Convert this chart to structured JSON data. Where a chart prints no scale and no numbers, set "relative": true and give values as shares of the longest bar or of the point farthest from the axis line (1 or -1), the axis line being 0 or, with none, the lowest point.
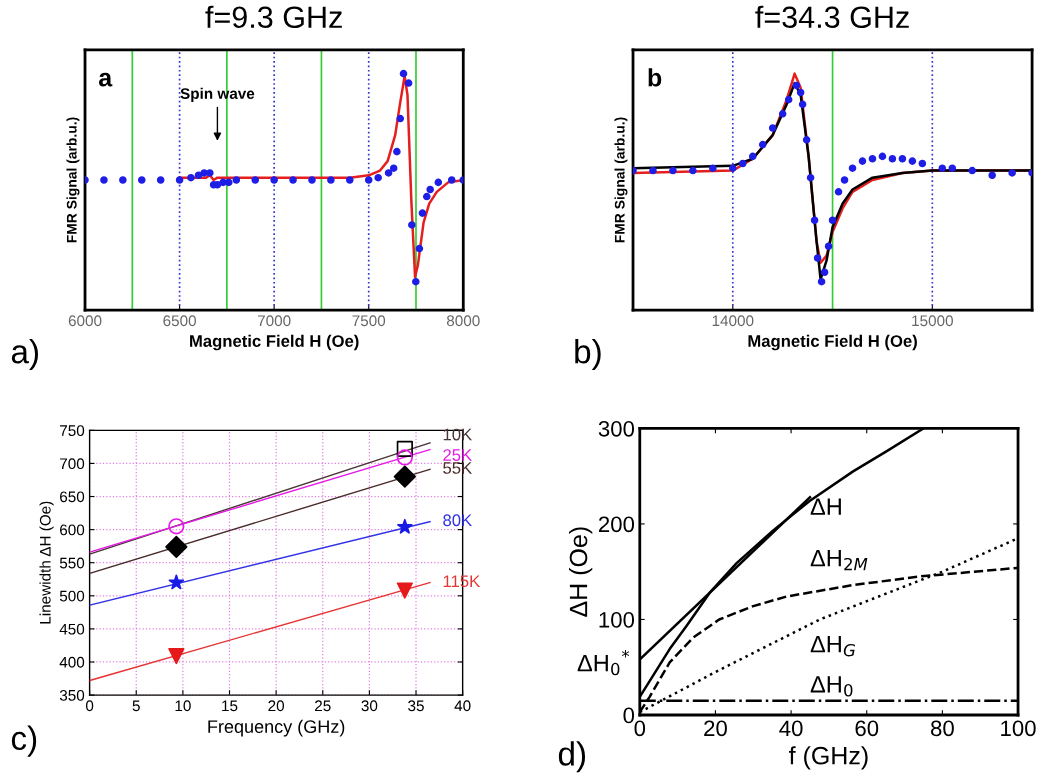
{
  "chart_data": [
    {
      "type": "scatter",
      "title": "f=9.3 GHz",
      "xlabel": "Magnetic Field H (Oe)",
      "ylabel": "FMR Signal (arb.u.)",
      "relative": true,
      "xlim": [
        6000,
        8000
      ],
      "xticks": [
        6000,
        6500,
        7000,
        7500,
        8000
      ],
      "series": [
        {
          "type": "scatter",
          "marker": "circle",
          "color": "#1e1ee6",
          "x": [
            6000,
            6100,
            6200,
            6300,
            6400,
            6500,
            6560,
            6600,
            6630,
            6660,
            6680,
            6700,
            6730,
            6760,
            6800,
            6900,
            7000,
            7100,
            7200,
            7300,
            7400,
            7500,
            7550,
            7605,
            7632,
            7649,
            7667,
            7684,
            7711,
            7728,
            7749,
            7768,
            7784,
            7807,
            7825,
            7868,
            7939,
            8000
          ],
          "values": [
            0.55,
            0.55,
            0.55,
            0.55,
            0.55,
            0.55,
            0.56,
            0.57,
            0.58,
            0.58,
            0.53,
            0.53,
            0.54,
            0.54,
            0.55,
            0.55,
            0.55,
            0.55,
            0.55,
            0.55,
            0.55,
            0.55,
            0.56,
            0.58,
            0.6,
            0.67,
            0.81,
            1.0,
            0.96,
            0.36,
            0.12,
            0.26,
            0.41,
            0.48,
            0.51,
            0.54,
            0.55,
            0.55
          ]
        },
        {
          "type": "line",
          "marker": "none",
          "color": "#e51e1e",
          "x": [
            6500,
            6640,
            6660,
            6680,
            6700,
            7000,
            7400,
            7500,
            7560,
            7600,
            7640,
            7665,
            7690,
            7705,
            7725,
            7745,
            7760,
            7790,
            7820,
            7860,
            7920,
            8000
          ],
          "values": [
            0.56,
            0.56,
            0.57,
            0.55,
            0.56,
            0.56,
            0.56,
            0.57,
            0.59,
            0.63,
            0.74,
            0.87,
            0.99,
            0.91,
            0.47,
            0.14,
            0.19,
            0.37,
            0.45,
            0.5,
            0.54,
            0.55
          ]
        }
      ],
      "ref_lines": [
        {
          "axis": "x",
          "value": 6250,
          "color": "#33cc33",
          "line_style": "solid"
        },
        {
          "axis": "x",
          "value": 6750,
          "color": "#33cc33",
          "line_style": "solid"
        },
        {
          "axis": "x",
          "value": 7250,
          "color": "#33cc33",
          "line_style": "solid"
        },
        {
          "axis": "x",
          "value": 7750,
          "color": "#33cc33",
          "line_style": "solid"
        },
        {
          "axis": "x",
          "value": 6500,
          "color": "#3333cc",
          "line_style": "dotted"
        },
        {
          "axis": "x",
          "value": 7000,
          "color": "#3333cc",
          "line_style": "dotted"
        },
        {
          "axis": "x",
          "value": 7500,
          "color": "#3333cc",
          "line_style": "dotted"
        }
      ],
      "annotations": [
        "a",
        "Spin wave",
        "a)"
      ]
    },
    {
      "type": "scatter",
      "title": "f=34.3 GHz",
      "xlabel": "Magnetic Field H (Oe)",
      "ylabel": "FMR Signal (arb.u.)",
      "relative": true,
      "xlim": [
        13500,
        15500
      ],
      "xticks": [
        14000,
        15000
      ],
      "series": [
        {
          "type": "scatter",
          "marker": "circle",
          "color": "#1e1ee6",
          "x": [
            13500,
            13600,
            13700,
            13800,
            13900,
            14000,
            14050,
            14100,
            14150,
            14200,
            14250,
            14280,
            14319,
            14340,
            14350,
            14370,
            14390,
            14410,
            14425,
            14445,
            14460,
            14480,
            14500,
            14530,
            14560,
            14600,
            14650,
            14700,
            14750,
            14800,
            14850,
            14900,
            14950,
            15050,
            15100,
            15200,
            15300,
            15400,
            15500
          ],
          "values": [
            0.59,
            0.59,
            0.59,
            0.59,
            0.6,
            0.6,
            0.62,
            0.65,
            0.7,
            0.77,
            0.83,
            0.89,
            0.95,
            0.92,
            0.87,
            0.72,
            0.56,
            0.38,
            0.22,
            0.12,
            0.16,
            0.27,
            0.38,
            0.5,
            0.55,
            0.6,
            0.63,
            0.64,
            0.65,
            0.64,
            0.64,
            0.63,
            0.62,
            0.6,
            0.6,
            0.59,
            0.57,
            0.58,
            0.58
          ]
        },
        {
          "type": "line",
          "marker": "none",
          "color": "#e51e1e",
          "x": [
            13500,
            14000,
            14100,
            14200,
            14270,
            14310,
            14340,
            14380,
            14420,
            14440,
            14470,
            14500,
            14550,
            14600,
            14700,
            14850,
            15000,
            15500
          ],
          "values": [
            0.58,
            0.59,
            0.64,
            0.74,
            0.89,
            1.0,
            0.94,
            0.65,
            0.29,
            0.2,
            0.23,
            0.33,
            0.43,
            0.5,
            0.55,
            0.58,
            0.59,
            0.59
          ]
        },
        {
          "type": "line",
          "marker": "none",
          "color": "#000000",
          "x": [
            13500,
            14000,
            14100,
            14200,
            14270,
            14310,
            14340,
            14380,
            14420,
            14440,
            14470,
            14500,
            14550,
            14600,
            14700,
            14850,
            15000,
            15500
          ],
          "values": [
            0.6,
            0.61,
            0.64,
            0.74,
            0.87,
            0.96,
            0.91,
            0.65,
            0.29,
            0.13,
            0.21,
            0.35,
            0.45,
            0.51,
            0.56,
            0.58,
            0.59,
            0.59
          ]
        }
      ],
      "ref_lines": [
        {
          "axis": "x",
          "value": 14500,
          "color": "#33cc33",
          "line_style": "solid"
        },
        {
          "axis": "x",
          "value": 14000,
          "color": "#3333cc",
          "line_style": "dotted"
        },
        {
          "axis": "x",
          "value": 15000,
          "color": "#3333cc",
          "line_style": "dotted"
        }
      ],
      "annotations": [
        "b",
        "b)"
      ]
    },
    {
      "type": "scatter",
      "xlabel": "Frequency (GHz)",
      "ylabel": "Linewidth ΔH (Oe)",
      "xlim": [
        0,
        40
      ],
      "xticks": [
        0,
        5,
        10,
        15,
        20,
        25,
        30,
        35,
        40
      ],
      "ylim": [
        350,
        750
      ],
      "yticks": [
        350,
        400,
        450,
        500,
        550,
        600,
        650,
        700,
        750
      ],
      "grid": true,
      "series": [
        {
          "type": "line",
          "name": "10K",
          "marker": "none",
          "color": "#4a3535",
          "x": [
            0,
            36.5
          ],
          "values": [
            563,
            731
          ]
        },
        {
          "type": "line",
          "name": "25K",
          "marker": "none",
          "color": "#e619e6",
          "x": [
            0,
            36.5
          ],
          "values": [
            566,
            721
          ]
        },
        {
          "type": "line",
          "name": "55K",
          "marker": "none",
          "color": "#4a2a2a",
          "x": [
            0,
            36.5
          ],
          "values": [
            534,
            691
          ]
        },
        {
          "type": "line",
          "name": "80K",
          "marker": "none",
          "color": "#3333e6",
          "x": [
            0,
            36.5
          ],
          "values": [
            486,
            612
          ]
        },
        {
          "type": "line",
          "name": "115K",
          "marker": "none",
          "color": "#e63333",
          "x": [
            0,
            36.5
          ],
          "values": [
            372,
            520
          ]
        },
        {
          "type": "scatter",
          "marker": "square",
          "color": "#000000",
          "x": [
            33.8
          ],
          "values": [
            722
          ]
        },
        {
          "type": "scatter",
          "marker": "circle",
          "color": "#e619e6",
          "x": [
            9.3,
            33.8
          ],
          "values": [
            605,
            709
          ]
        },
        {
          "type": "scatter",
          "marker": "diamond",
          "color": "#000000",
          "x": [
            9.3,
            33.8
          ],
          "values": [
            574,
            680
          ]
        },
        {
          "type": "scatter",
          "marker": "star",
          "color": "#1a1ae6",
          "x": [
            9.3,
            33.8
          ],
          "values": [
            520,
            604
          ]
        },
        {
          "type": "scatter",
          "marker": "triangle_down",
          "color": "#e61a1a",
          "x": [
            9.3,
            33.8
          ],
          "values": [
            409,
            508
          ]
        }
      ],
      "annotations": [
        "c)"
      ]
    },
    {
      "type": "line",
      "xlabel": "f (GHz)",
      "ylabel": "ΔH (Oe)",
      "xlim": [
        0,
        100
      ],
      "xticks": [
        0,
        20,
        40,
        60,
        80,
        100
      ],
      "ylim": [
        0,
        300
      ],
      "yticks": [
        0,
        100,
        200,
        300
      ],
      "series": [
        {
          "line_style": "solid",
          "color": "#000000",
          "x": [
            0,
            7.9,
            12.3,
            18.5,
            25.6,
            35.2,
            44.9,
            56.4,
            65.2,
            75
          ],
          "values": [
            19,
            69,
            93,
            128,
            159,
            193,
            224,
            255,
            276,
            300
          ]
        },
        {
          "line_style": "solid",
          "color": "#000000",
          "x": [
            0,
            45
          ],
          "values": [
            58,
            228
          ]
        },
        {
          "line_style": "dashed",
          "color": "#000000",
          "x": [
            0,
            2.6,
            7.9,
            14.1,
            21,
            30,
            38.8,
            56.4,
            74,
            100
          ],
          "values": [
            3,
            19,
            55,
            81,
            100,
            114,
            124,
            136,
            145,
            154
          ]
        },
        {
          "line_style": "dotted",
          "color": "#000000",
          "x": [
            0,
            20,
            47.6,
            80,
            100
          ],
          "values": [
            3,
            45,
            100,
            150,
            185
          ]
        },
        {
          "line_style": "dashdot",
          "color": "#000000",
          "x": [
            0,
            100
          ],
          "values": [
            15,
            15
          ]
        }
      ],
      "annotations": [
        "ΔH",
        "ΔH$_{2M}$",
        "ΔH$_{G}$",
        "ΔH$_{0}$",
        "ΔH$_{0}$$^{*}$",
        "d)"
      ]
    }
  ]
}
